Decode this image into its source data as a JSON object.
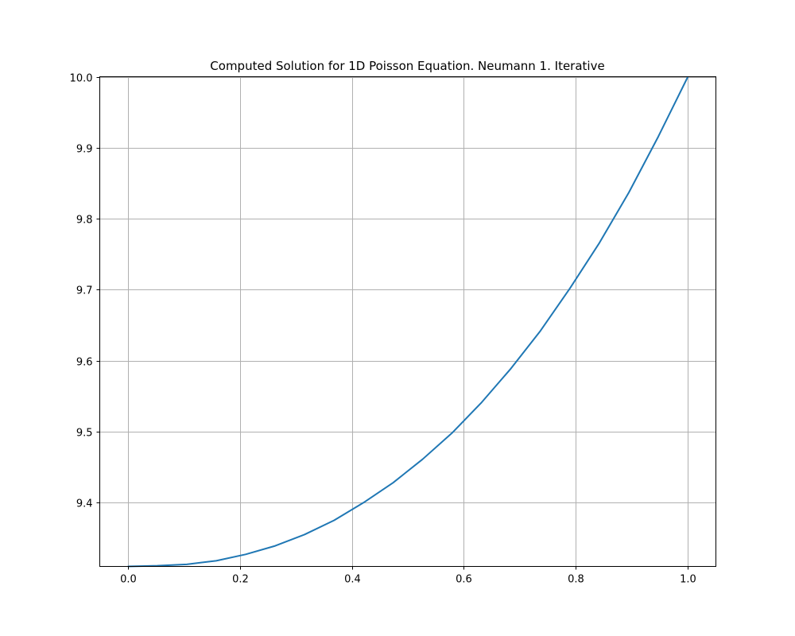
{
  "chart_data": {
    "type": "line",
    "title": "Computed Solution for 1D Poisson Equation. Neumann 1. Iterative",
    "xlabel": "",
    "ylabel": "",
    "xlim": [
      -0.05,
      1.05
    ],
    "ylim": [
      9.31,
      10.0
    ],
    "grid": true,
    "x_ticks": [
      0.0,
      0.2,
      0.4,
      0.6,
      0.8,
      1.0
    ],
    "x_tick_labels": [
      "0.0",
      "0.2",
      "0.4",
      "0.6",
      "0.8",
      "1.0"
    ],
    "y_ticks": [
      9.4,
      9.5,
      9.6,
      9.7,
      9.8,
      9.9,
      10.0
    ],
    "y_tick_labels": [
      "9.4",
      "9.5",
      "9.6",
      "9.7",
      "9.8",
      "9.9",
      "10.0"
    ],
    "line_color": "#1f77b4",
    "series": [
      {
        "x": [
          0.0,
          0.0526,
          0.1053,
          0.1579,
          0.2105,
          0.2632,
          0.3158,
          0.3684,
          0.4211,
          0.4737,
          0.5263,
          0.5789,
          0.6316,
          0.6842,
          0.7368,
          0.7895,
          0.8421,
          0.8947,
          0.9474,
          1.0
        ],
        "values": [
          9.31,
          9.311,
          9.313,
          9.318,
          9.327,
          9.339,
          9.355,
          9.375,
          9.4,
          9.428,
          9.461,
          9.498,
          9.541,
          9.589,
          9.642,
          9.702,
          9.766,
          9.837,
          9.916,
          10.0
        ]
      }
    ]
  }
}
